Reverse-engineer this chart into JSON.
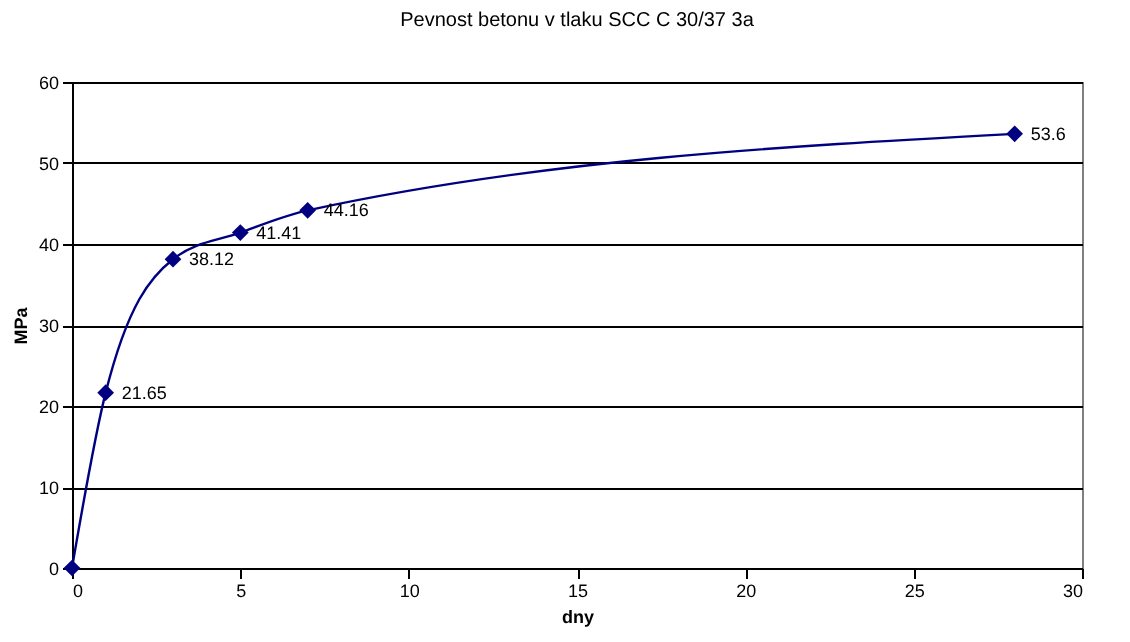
{
  "chart_data": {
    "type": "line",
    "title": "Pevnost betonu v tlaku SCC C 30/37 3a",
    "xlabel": "dny",
    "ylabel": "MPa",
    "x": [
      0,
      1,
      3,
      5,
      7,
      28
    ],
    "series": [
      {
        "color": "#000080",
        "values": [
          0,
          21.65,
          38.12,
          41.41,
          44.16,
          53.6
        ],
        "value_labels": [
          null,
          "21.65",
          "38.12",
          "41.41",
          "44.16",
          "53.6"
        ]
      }
    ],
    "xlim": [
      0,
      30
    ],
    "xticks": [
      0,
      5,
      10,
      15,
      20,
      25,
      30
    ],
    "ylim": [
      0,
      60
    ],
    "yticks": [
      0,
      10,
      20,
      30,
      40,
      50,
      60
    ],
    "grid": "y",
    "marker": "diamond",
    "line_style": "solid"
  }
}
